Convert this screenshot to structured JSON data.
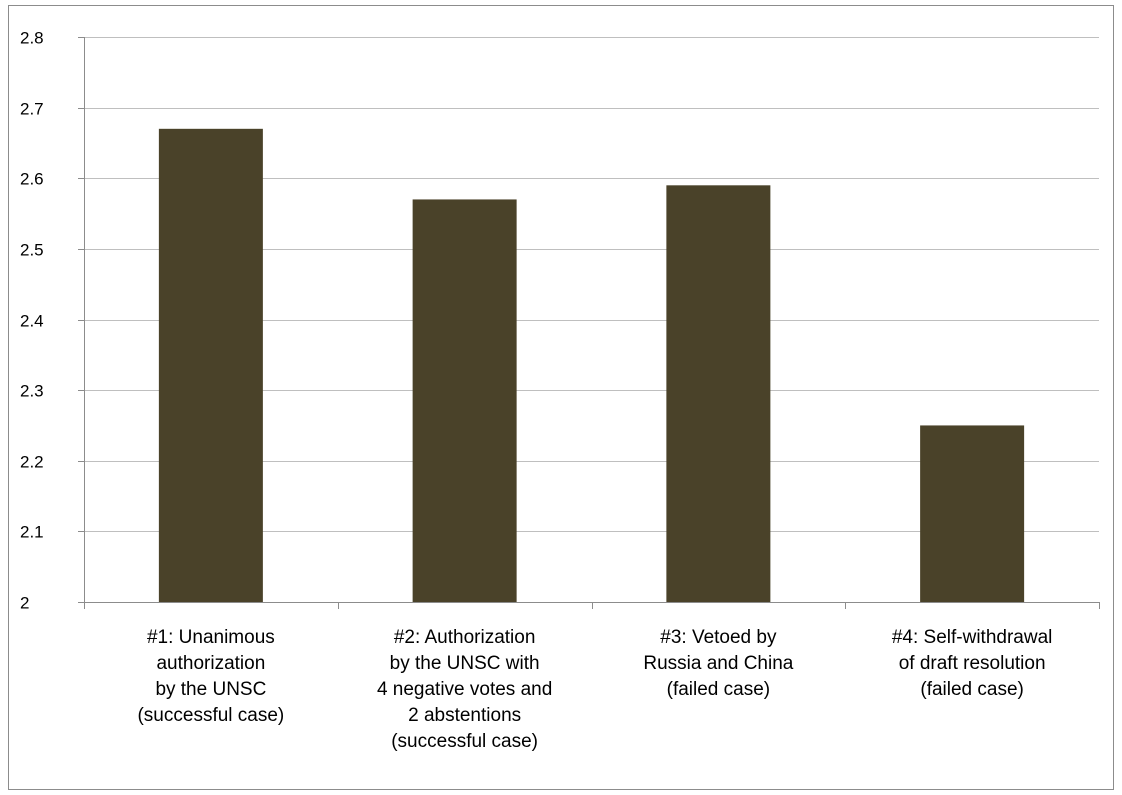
{
  "chart_data": {
    "type": "bar",
    "categories": [
      [
        "#1: Unanimous",
        "authorization",
        "by the UNSC",
        "(successful case)"
      ],
      [
        "#2: Authorization",
        "by the UNSC with",
        "4 negative votes and",
        "2 abstentions",
        "(successful case)"
      ],
      [
        "#3: Vetoed by",
        "Russia and China",
        "(failed case)"
      ],
      [
        "#4: Self-withdrawal",
        "of draft resolution",
        "(failed case)"
      ]
    ],
    "values": [
      2.67,
      2.57,
      2.59,
      2.25
    ],
    "ylim": [
      2,
      2.8
    ],
    "yticks": [
      "2",
      "2.1",
      "2.2",
      "2.3",
      "2.4",
      "2.5",
      "2.6",
      "2.7",
      "2.8"
    ],
    "grid": true,
    "legend": "none",
    "title": "",
    "xlabel": "",
    "ylabel": "",
    "bar_color": "#4a4229",
    "grid_color": "#bfbfbf",
    "axis_color": "#8c8c8c"
  }
}
